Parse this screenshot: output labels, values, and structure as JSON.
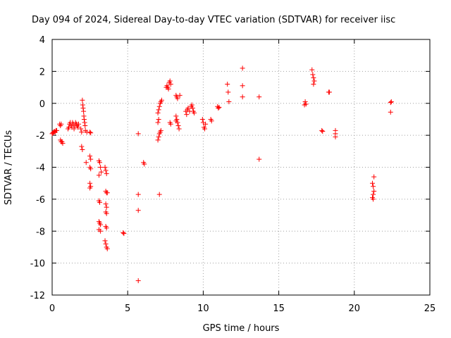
{
  "chart_data": {
    "type": "scatter",
    "title": "Day 094 of 2024, Sidereal Day-to-day VTEC variation (SDTVAR) for receiver iisc",
    "xlabel": "GPS time / hours",
    "ylabel": "SDTVAR / TECUs",
    "xlim": [
      0,
      25
    ],
    "ylim": [
      -12,
      4
    ],
    "xticks": [
      0,
      5,
      10,
      15,
      20,
      25
    ],
    "xtick_labels": [
      "0",
      "5",
      "10",
      "15",
      "20",
      "25"
    ],
    "yticks": [
      -12,
      -10,
      -8,
      -6,
      -4,
      -2,
      0,
      2,
      4
    ],
    "ytick_labels": [
      "-12",
      "-10",
      "-8",
      "-6",
      "-4",
      "-2",
      "0",
      "2",
      "4"
    ],
    "grid": true,
    "marker": "+",
    "color": "#ff0000",
    "series": [
      {
        "name": "SDTVAR",
        "points": [
          [
            0.0,
            -1.9
          ],
          [
            0.05,
            -1.85
          ],
          [
            0.1,
            -1.8
          ],
          [
            0.15,
            -1.75
          ],
          [
            0.2,
            -1.8
          ],
          [
            0.25,
            -1.7
          ],
          [
            0.3,
            -1.7
          ],
          [
            0.5,
            -1.3
          ],
          [
            0.55,
            -1.4
          ],
          [
            0.6,
            -1.3
          ],
          [
            0.55,
            -2.3
          ],
          [
            0.6,
            -2.4
          ],
          [
            0.65,
            -2.4
          ],
          [
            0.7,
            -2.5
          ],
          [
            1.05,
            -1.6
          ],
          [
            1.1,
            -1.5
          ],
          [
            1.15,
            -1.3
          ],
          [
            1.2,
            -1.2
          ],
          [
            1.25,
            -1.4
          ],
          [
            1.3,
            -1.5
          ],
          [
            1.35,
            -1.2
          ],
          [
            1.4,
            -1.3
          ],
          [
            1.45,
            -1.6
          ],
          [
            1.5,
            -1.4
          ],
          [
            1.55,
            -1.2
          ],
          [
            1.6,
            -1.3
          ],
          [
            1.65,
            -1.4
          ],
          [
            1.7,
            -1.5
          ],
          [
            1.75,
            -1.3
          ],
          [
            1.9,
            -1.6
          ],
          [
            1.95,
            -1.8
          ],
          [
            2.0,
            0.2
          ],
          [
            2.02,
            -0.1
          ],
          [
            2.05,
            -0.3
          ],
          [
            2.08,
            -0.5
          ],
          [
            2.1,
            -0.8
          ],
          [
            2.12,
            -1.0
          ],
          [
            2.15,
            -1.2
          ],
          [
            2.18,
            -1.4
          ],
          [
            2.2,
            -1.7
          ],
          [
            2.3,
            -1.8
          ],
          [
            1.95,
            -2.7
          ],
          [
            2.0,
            -2.9
          ],
          [
            2.25,
            -3.7
          ],
          [
            2.5,
            -1.8
          ],
          [
            2.55,
            -1.85
          ],
          [
            2.5,
            -3.3
          ],
          [
            2.55,
            -3.5
          ],
          [
            2.5,
            -4.0
          ],
          [
            2.55,
            -4.1
          ],
          [
            2.5,
            -5.0
          ],
          [
            2.55,
            -5.2
          ],
          [
            2.5,
            -5.3
          ],
          [
            3.1,
            -3.6
          ],
          [
            3.15,
            -3.7
          ],
          [
            3.2,
            -4.0
          ],
          [
            3.25,
            -4.3
          ],
          [
            3.1,
            -4.5
          ],
          [
            3.1,
            -6.1
          ],
          [
            3.15,
            -6.2
          ],
          [
            3.1,
            -7.4
          ],
          [
            3.15,
            -7.5
          ],
          [
            3.2,
            -7.6
          ],
          [
            3.1,
            -7.9
          ],
          [
            3.2,
            -8.0
          ],
          [
            3.5,
            -4.0
          ],
          [
            3.55,
            -4.2
          ],
          [
            3.6,
            -4.4
          ],
          [
            3.55,
            -5.5
          ],
          [
            3.6,
            -5.6
          ],
          [
            3.65,
            -5.6
          ],
          [
            3.55,
            -6.3
          ],
          [
            3.6,
            -6.5
          ],
          [
            3.55,
            -6.8
          ],
          [
            3.6,
            -6.9
          ],
          [
            3.55,
            -7.7
          ],
          [
            3.6,
            -7.8
          ],
          [
            3.5,
            -8.6
          ],
          [
            3.55,
            -8.8
          ],
          [
            3.6,
            -9.0
          ],
          [
            3.65,
            -9.1
          ],
          [
            4.7,
            -8.1
          ],
          [
            4.75,
            -8.15
          ],
          [
            5.7,
            -1.9
          ],
          [
            5.7,
            -5.7
          ],
          [
            5.7,
            -6.7
          ],
          [
            5.7,
            -11.1
          ],
          [
            6.05,
            -3.7
          ],
          [
            6.1,
            -3.8
          ],
          [
            7.0,
            -2.3
          ],
          [
            7.05,
            -2.1
          ],
          [
            7.1,
            -1.9
          ],
          [
            7.15,
            -1.8
          ],
          [
            7.2,
            -1.7
          ],
          [
            7.0,
            -0.6
          ],
          [
            7.05,
            -0.4
          ],
          [
            7.1,
            -0.2
          ],
          [
            7.15,
            0.0
          ],
          [
            7.2,
            0.1
          ],
          [
            7.25,
            0.2
          ],
          [
            7.1,
            -5.7
          ],
          [
            7.0,
            -1.2
          ],
          [
            7.05,
            -1.0
          ],
          [
            7.55,
            1.0
          ],
          [
            7.6,
            1.1
          ],
          [
            7.65,
            1.0
          ],
          [
            7.7,
            0.9
          ],
          [
            7.75,
            1.3
          ],
          [
            7.8,
            1.4
          ],
          [
            7.85,
            1.2
          ],
          [
            7.8,
            -1.2
          ],
          [
            7.85,
            -1.3
          ],
          [
            8.2,
            0.5
          ],
          [
            8.25,
            0.4
          ],
          [
            8.3,
            0.3
          ],
          [
            8.2,
            -0.8
          ],
          [
            8.25,
            -1.0
          ],
          [
            8.3,
            -1.2
          ],
          [
            8.35,
            -1.4
          ],
          [
            8.4,
            -1.6
          ],
          [
            8.2,
            -1.1
          ],
          [
            8.45,
            0.5
          ],
          [
            8.85,
            -0.5
          ],
          [
            8.9,
            -0.7
          ],
          [
            8.95,
            -0.4
          ],
          [
            9.0,
            -0.3
          ],
          [
            9.1,
            -0.5
          ],
          [
            9.2,
            -0.2
          ],
          [
            9.25,
            -0.1
          ],
          [
            9.3,
            -0.3
          ],
          [
            9.35,
            -0.5
          ],
          [
            9.4,
            -0.6
          ],
          [
            9.95,
            -1.0
          ],
          [
            10.0,
            -1.2
          ],
          [
            10.05,
            -1.5
          ],
          [
            10.1,
            -1.6
          ],
          [
            10.15,
            -1.3
          ],
          [
            10.5,
            -1.0
          ],
          [
            10.55,
            -1.1
          ],
          [
            10.95,
            -0.2
          ],
          [
            11.0,
            -0.3
          ],
          [
            11.05,
            -0.25
          ],
          [
            11.6,
            1.2
          ],
          [
            11.65,
            0.7
          ],
          [
            11.7,
            0.1
          ],
          [
            12.6,
            2.2
          ],
          [
            12.6,
            1.1
          ],
          [
            12.6,
            0.4
          ],
          [
            13.7,
            0.4
          ],
          [
            13.7,
            -3.5
          ],
          [
            16.7,
            -0.1
          ],
          [
            16.75,
            0.1
          ],
          [
            16.8,
            -0.05
          ],
          [
            17.2,
            2.1
          ],
          [
            17.25,
            1.8
          ],
          [
            17.3,
            1.6
          ],
          [
            17.35,
            1.4
          ],
          [
            17.3,
            1.2
          ],
          [
            17.85,
            -1.7
          ],
          [
            17.9,
            -1.75
          ],
          [
            18.3,
            0.7
          ],
          [
            18.35,
            0.7
          ],
          [
            18.75,
            -1.7
          ],
          [
            18.75,
            -1.9
          ],
          [
            18.75,
            -2.1
          ],
          [
            21.2,
            -5.0
          ],
          [
            21.25,
            -5.2
          ],
          [
            21.3,
            -5.5
          ],
          [
            21.25,
            -5.7
          ],
          [
            21.2,
            -5.9
          ],
          [
            21.3,
            -4.6
          ],
          [
            21.25,
            -6.0
          ],
          [
            22.4,
            0.05
          ],
          [
            22.45,
            0.1
          ],
          [
            22.4,
            -0.55
          ]
        ]
      }
    ]
  }
}
